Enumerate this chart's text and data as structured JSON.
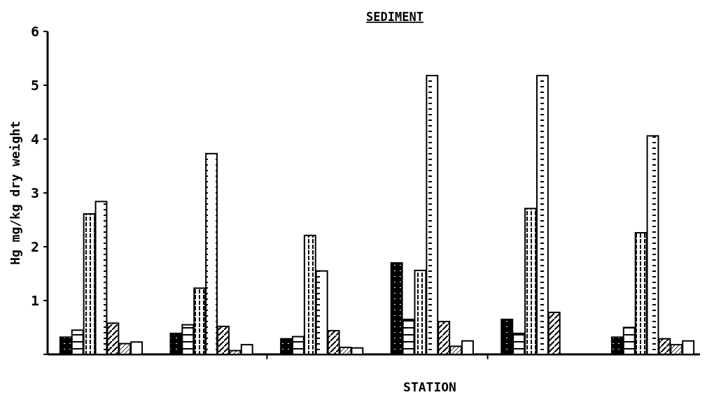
{
  "chart_data": {
    "type": "bar",
    "title": "SEDIMENT",
    "xlabel": "STATION",
    "ylabel": "Hg mg/kg  dry weight",
    "categories": [
      null,
      null,
      null,
      null,
      null,
      null
    ],
    "series": [
      {
        "color": "#000000",
        "values": [
          0.32,
          0.39,
          0.29,
          1.7,
          0.65,
          0.32
        ]
      },
      {
        "color": "#000000",
        "values": [
          0.45,
          0.55,
          0.33,
          0.65,
          0.39,
          0.5
        ]
      },
      {
        "color": "#000000",
        "values": [
          2.61,
          1.23,
          2.21,
          1.56,
          2.71,
          2.26
        ]
      },
      {
        "color": "#000000",
        "values": [
          2.84,
          3.73,
          1.55,
          5.18,
          5.18,
          4.06
        ]
      },
      {
        "color": "#000000",
        "values": [
          0.58,
          0.52,
          0.44,
          0.61,
          0.78,
          0.29
        ]
      },
      {
        "color": "#000000",
        "values": [
          0.2,
          0.07,
          0.13,
          0.15,
          null,
          0.18
        ]
      },
      {
        "color": "#000000",
        "values": [
          0.23,
          0.18,
          0.12,
          0.25,
          null,
          0.25
        ]
      }
    ],
    "ylim": [
      0,
      6
    ],
    "yticks": [
      {
        "value": 0,
        "label": null
      },
      1,
      2,
      3,
      4,
      5,
      6
    ],
    "grid": false
  }
}
